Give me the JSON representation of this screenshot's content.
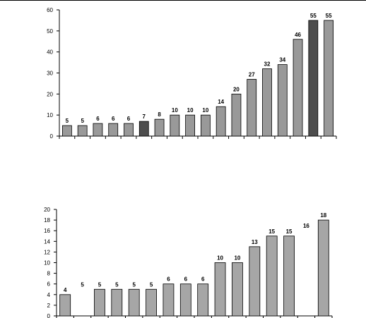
{
  "chart_data": [
    {
      "type": "bar",
      "categories": [
        "",
        "",
        "",
        "",
        "",
        "",
        "",
        "",
        "",
        "",
        "",
        "",
        "",
        "",
        "",
        "",
        "",
        ""
      ],
      "values": [
        5,
        5,
        6,
        6,
        6,
        7,
        8,
        10,
        10,
        10,
        14,
        20,
        27,
        32,
        34,
        46,
        55,
        55
      ],
      "highlight": [
        false,
        false,
        false,
        false,
        false,
        true,
        false,
        false,
        false,
        false,
        false,
        false,
        false,
        false,
        false,
        false,
        true,
        false
      ],
      "ylim": [
        0,
        60
      ],
      "yticks": [
        0,
        10,
        20,
        30,
        40,
        50,
        60
      ],
      "bar_color": "#999999",
      "highlight_color": "#4d4d4d",
      "grid": false
    },
    {
      "type": "bar",
      "categories": [
        "",
        "",
        "",
        "",
        "",
        "",
        "",
        "",
        "",
        "",
        "",
        "",
        "",
        "",
        "",
        ""
      ],
      "values": [
        4,
        5,
        5,
        5,
        5,
        5,
        6,
        6,
        6,
        10,
        10,
        13,
        15,
        15,
        16,
        18
      ],
      "bar_drawn": [
        true,
        false,
        true,
        true,
        true,
        true,
        true,
        true,
        true,
        true,
        true,
        true,
        true,
        true,
        false,
        true
      ],
      "ylim": [
        0,
        20
      ],
      "yticks": [
        0,
        2,
        4,
        6,
        8,
        10,
        12,
        14,
        16,
        18,
        20
      ],
      "bar_color": "#a6a6a6",
      "grid": false
    }
  ]
}
